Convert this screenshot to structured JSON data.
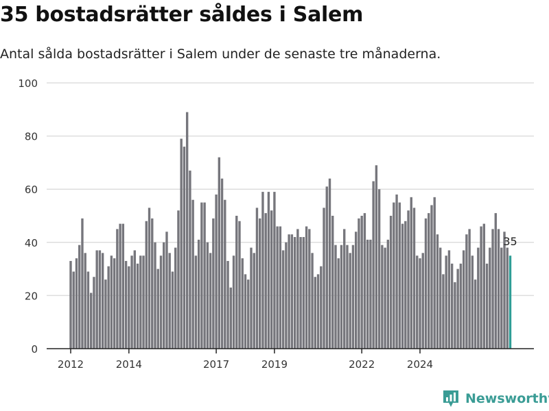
{
  "title": "35 bostadsrätter såldes i Salem",
  "subtitle": "Antal sålda bostadsrätter i Salem under de senaste tre månaderna.",
  "brand": "Newsworthy",
  "colors": {
    "bar": "#76767c",
    "highlight": "#2f9e96",
    "grid": "#dddddd",
    "axis": "#222222",
    "brand": "#3a9c95"
  },
  "chart_data": {
    "type": "bar",
    "title": "35 bostadsrätter såldes i Salem",
    "xlabel": "",
    "ylabel": "",
    "ylim": [
      0,
      100
    ],
    "yticks": [
      0,
      20,
      40,
      60,
      80,
      100
    ],
    "xticks": [
      {
        "label": "2012",
        "index": 0
      },
      {
        "label": "2014",
        "index": 20
      },
      {
        "label": "2017",
        "index": 50
      },
      {
        "label": "2019",
        "index": 70
      },
      {
        "label": "2022",
        "index": 100
      },
      {
        "label": "2024",
        "index": 120
      }
    ],
    "highlight_label": "35",
    "values": [
      33,
      29,
      34,
      39,
      49,
      36,
      29,
      21,
      27,
      37,
      37,
      36,
      26,
      31,
      35,
      34,
      45,
      47,
      47,
      33,
      31,
      35,
      37,
      32,
      35,
      35,
      48,
      53,
      49,
      40,
      30,
      35,
      40,
      44,
      36,
      29,
      38,
      52,
      79,
      76,
      89,
      67,
      56,
      35,
      41,
      55,
      55,
      40,
      36,
      49,
      58,
      72,
      64,
      56,
      33,
      23,
      35,
      50,
      48,
      34,
      28,
      26,
      38,
      36,
      53,
      49,
      59,
      51,
      59,
      52,
      59,
      46,
      46,
      37,
      40,
      43,
      43,
      42,
      45,
      42,
      42,
      46,
      45,
      36,
      27,
      28,
      31,
      53,
      61,
      64,
      50,
      39,
      34,
      39,
      45,
      39,
      36,
      39,
      44,
      49,
      50,
      51,
      41,
      41,
      63,
      69,
      60,
      39,
      38,
      41,
      50,
      55,
      58,
      55,
      47,
      48,
      52,
      57,
      53,
      35,
      34,
      36,
      49,
      51,
      54,
      57,
      43,
      38,
      28,
      35,
      37,
      32,
      25,
      30,
      32,
      37,
      43,
      45,
      35,
      26,
      38,
      46,
      47,
      32,
      38,
      45,
      51,
      45,
      38,
      44,
      38,
      35
    ]
  }
}
